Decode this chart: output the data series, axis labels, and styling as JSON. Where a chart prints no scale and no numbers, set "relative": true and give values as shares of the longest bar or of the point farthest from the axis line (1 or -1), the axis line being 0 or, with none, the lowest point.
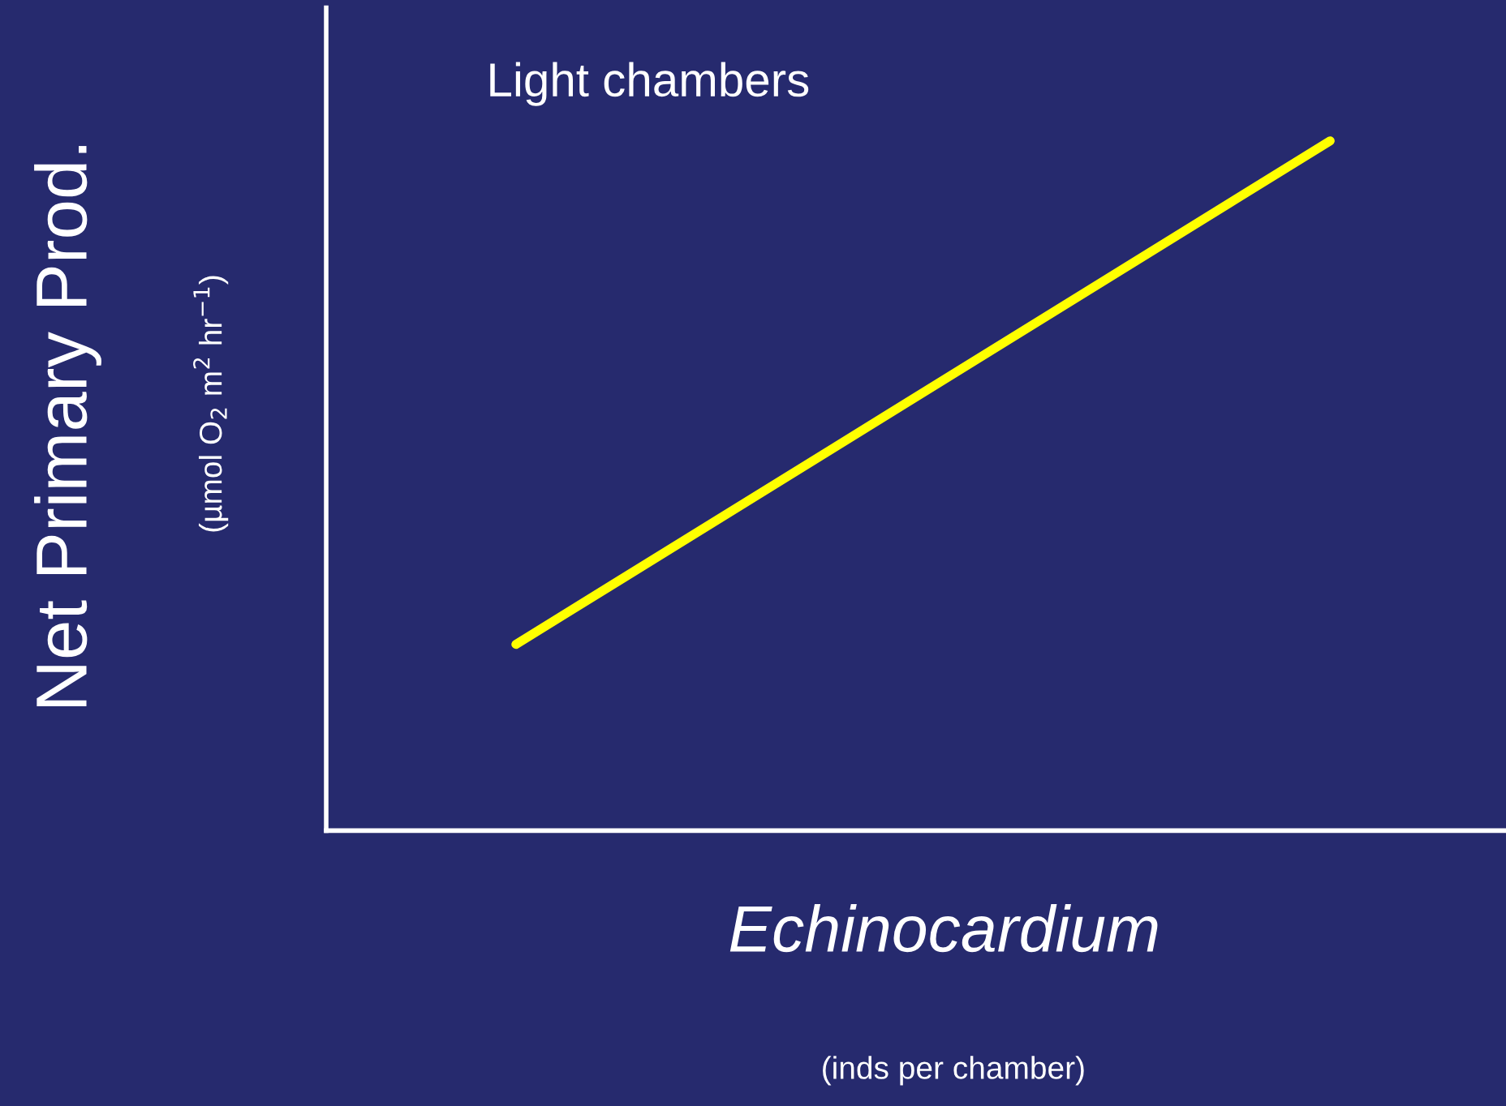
{
  "chart_data": {
    "type": "line",
    "relative": true,
    "categories": [
      null,
      null
    ],
    "series": [
      {
        "color": "#ffff00",
        "values": [
          0.27,
          1
        ]
      }
    ],
    "ylabel": "Net Primary Prod.",
    "xlabel": "Echinocardium",
    "annotations": [
      "Light chambers",
      "(µmol O$_{2}$ m$^{2}$ hr$^{−1}$)",
      "(inds per chamber)"
    ],
    "grid": false,
    "marker": "none",
    "line_style": "solid"
  }
}
